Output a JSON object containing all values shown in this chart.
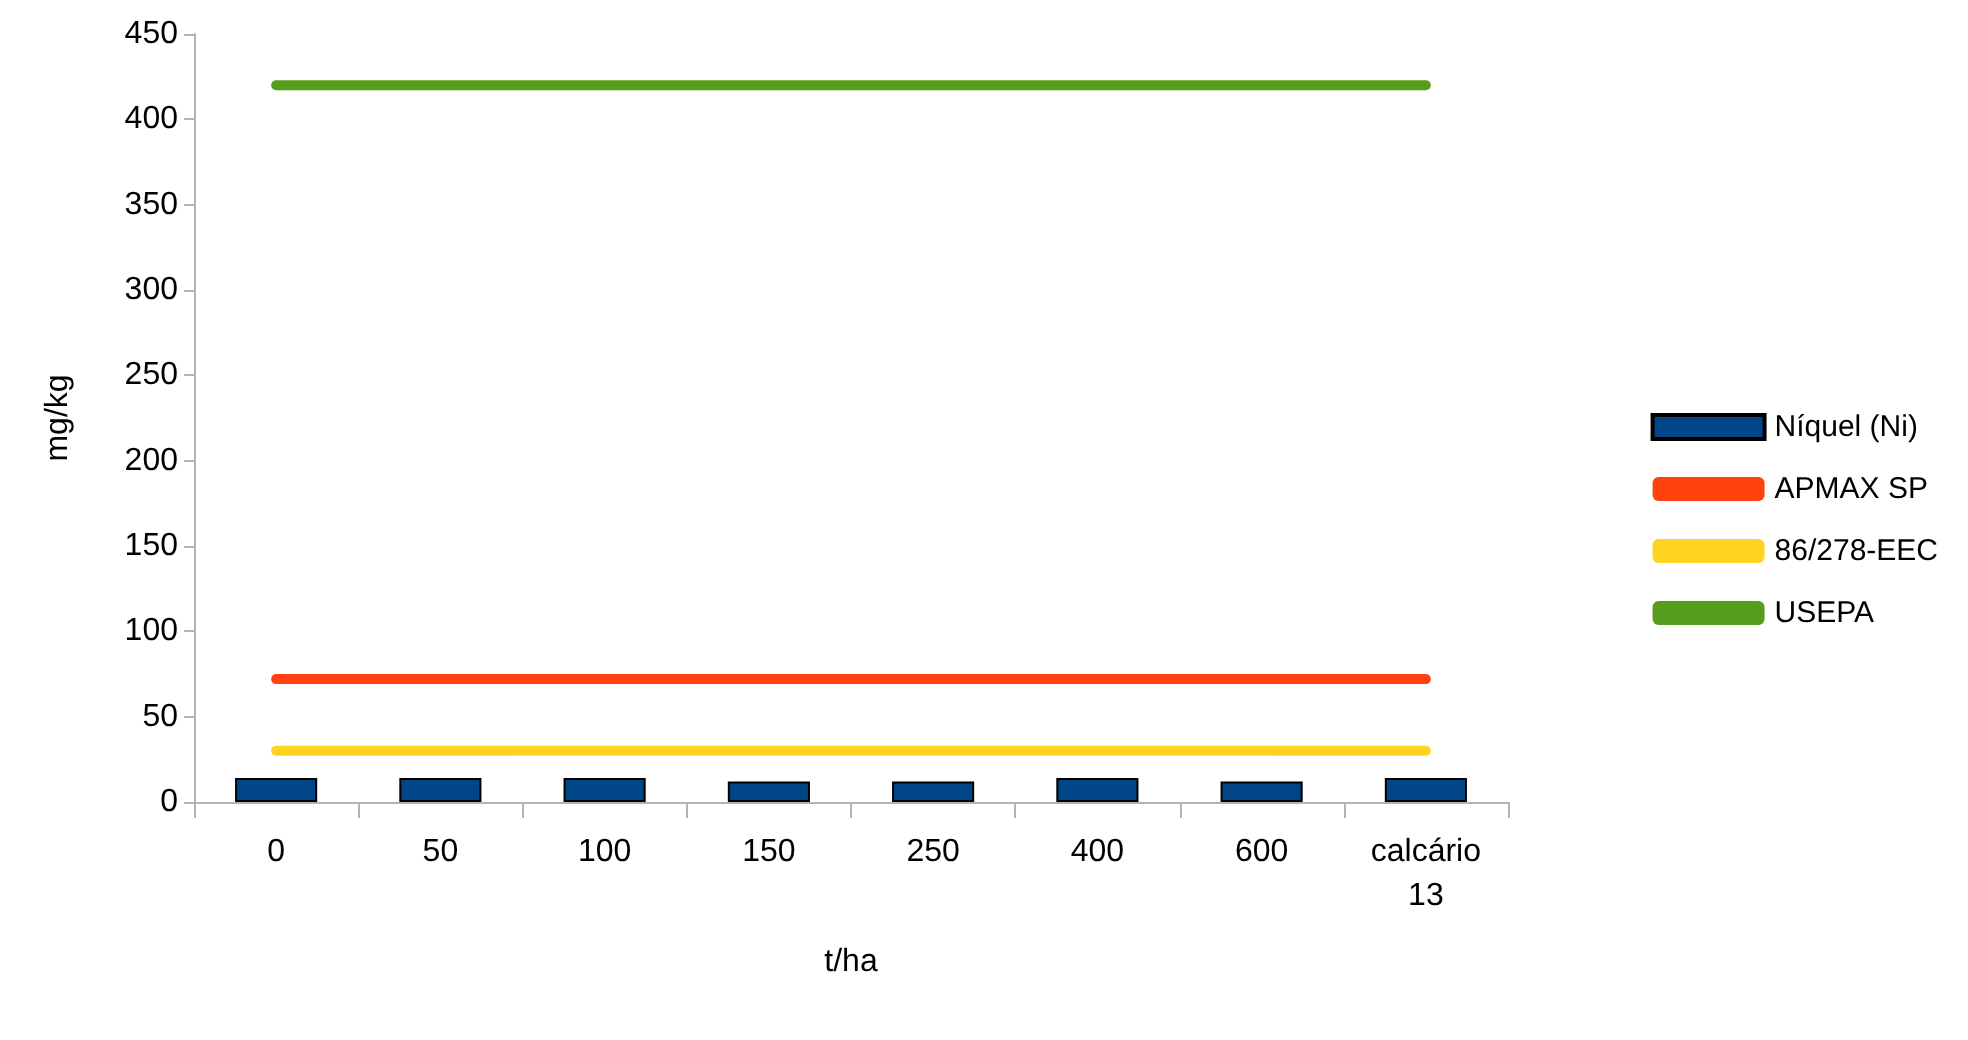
{
  "chart_data": {
    "type": "bar",
    "xlabel": "t/ha",
    "ylabel": "mg/kg",
    "categories": [
      "0",
      "50",
      "100",
      "150",
      "250",
      "400",
      "600",
      "calcário\n13"
    ],
    "series": [
      {
        "name": "Níquel (Ni)",
        "color": "#004586",
        "values": [
          14,
          14,
          14,
          12,
          12,
          14,
          12,
          14
        ]
      },
      {
        "name": "APMAX SP",
        "type": "line",
        "color": "#ff420e",
        "values": [
          72,
          72,
          72,
          72,
          72,
          72,
          72,
          72
        ]
      },
      {
        "name": "86/278-EEC",
        "type": "line",
        "color": "#ffd320",
        "values": [
          30,
          30,
          30,
          30,
          30,
          30,
          30,
          30
        ]
      },
      {
        "name": "USEPA",
        "type": "line",
        "color": "#579d1c",
        "values": [
          420,
          420,
          420,
          420,
          420,
          420,
          420,
          420
        ]
      }
    ],
    "ylim": [
      0,
      450
    ],
    "yticks": [
      0,
      50,
      100,
      150,
      200,
      250,
      300,
      350,
      400,
      450
    ],
    "grid": false,
    "legend": "right",
    "marker": "none"
  }
}
